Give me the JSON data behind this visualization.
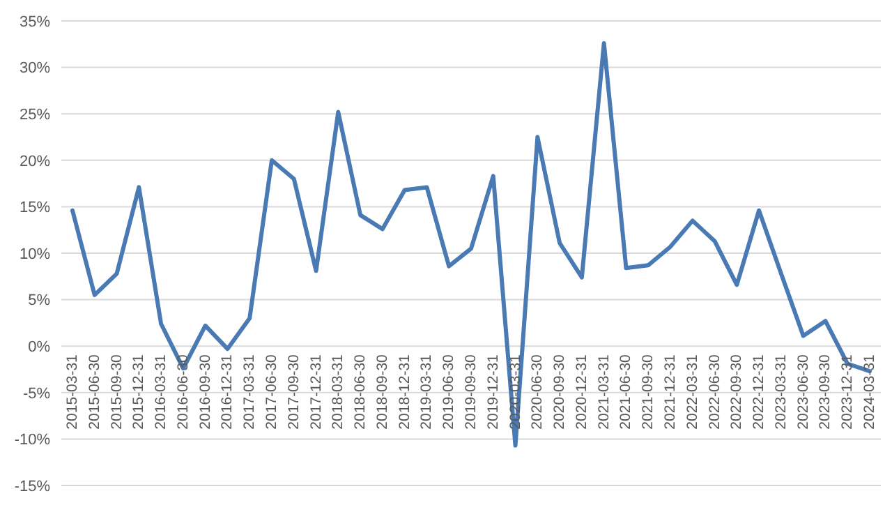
{
  "chart_data": {
    "type": "line",
    "categories": [
      "2015-03-31",
      "2015-06-30",
      "2015-09-30",
      "2015-12-31",
      "2016-03-31",
      "2016-06-30",
      "2016-09-30",
      "2016-12-31",
      "2017-03-31",
      "2017-06-30",
      "2017-09-30",
      "2017-12-31",
      "2018-03-31",
      "2018-06-30",
      "2018-09-30",
      "2018-12-31",
      "2019-03-31",
      "2019-06-30",
      "2019-09-30",
      "2019-12-31",
      "2020-03-31",
      "2020-06-30",
      "2020-09-30",
      "2020-12-31",
      "2021-03-31",
      "2021-06-30",
      "2021-09-30",
      "2021-12-31",
      "2022-03-31",
      "2022-06-30",
      "2022-09-30",
      "2022-12-31",
      "2023-03-31",
      "2023-06-30",
      "2023-09-30",
      "2023-12-31",
      "2024-03-31"
    ],
    "series": [
      {
        "color": "#4a7ab4",
        "values": [
          14.6,
          5.5,
          7.8,
          17.1,
          2.4,
          -2.4,
          2.2,
          -0.3,
          3,
          20,
          18,
          8.1,
          25.2,
          14.1,
          12.6,
          16.8,
          17.1,
          8.6,
          10.5,
          18.3,
          -10.7,
          22.5,
          11.1,
          7.4,
          32.6,
          8.4,
          8.7,
          10.7,
          13.5,
          11.3,
          6.6,
          14.6,
          7.8,
          1.1,
          2.7,
          -1.9,
          -2.7
        ]
      }
    ],
    "ylim": [
      -15,
      35
    ],
    "yticks": [
      {
        "value": -15,
        "label": "-15%"
      },
      {
        "value": -10,
        "label": "-10%"
      },
      {
        "value": -5,
        "label": "-5%"
      },
      {
        "value": 0,
        "label": "0%"
      },
      {
        "value": 5,
        "label": "5%"
      },
      {
        "value": 10,
        "label": "10%"
      },
      {
        "value": 15,
        "label": "15%"
      },
      {
        "value": 20,
        "label": "20%"
      },
      {
        "value": 25,
        "label": "25%"
      },
      {
        "value": 30,
        "label": "30%"
      },
      {
        "value": 35,
        "label": "35%"
      }
    ],
    "grid": "y",
    "legend": false,
    "marker": "none",
    "line_style": "solid"
  }
}
